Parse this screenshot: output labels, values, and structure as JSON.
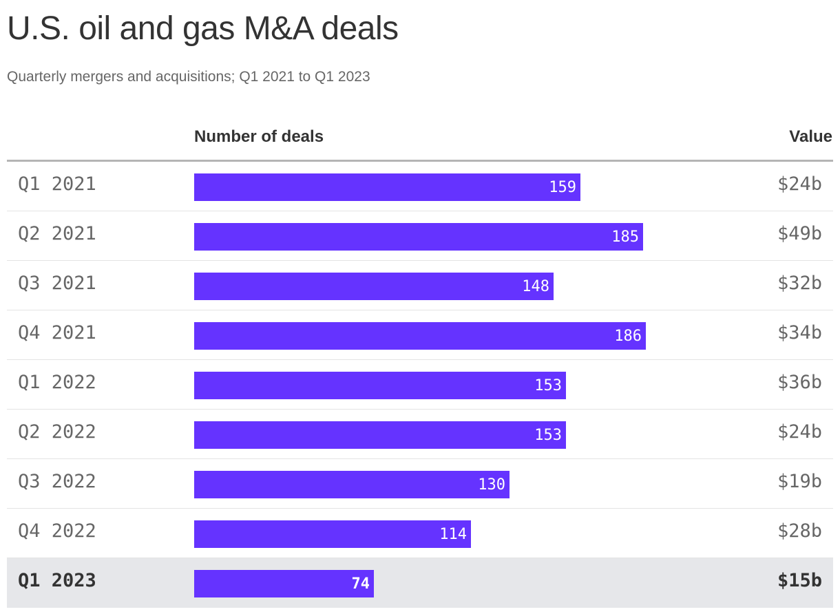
{
  "chart_data": {
    "type": "bar",
    "orientation": "horizontal",
    "title": "U.S. oil and gas M&A deals",
    "subtitle": "Quarterly mergers and acquisitions; Q1 2021 to Q1 2023",
    "columns": {
      "deals": "Number of deals",
      "value": "Value"
    },
    "categories": [
      "Q1 2021",
      "Q2 2021",
      "Q3 2021",
      "Q4 2021",
      "Q1 2022",
      "Q2 2022",
      "Q3 2022",
      "Q4 2022",
      "Q1 2023"
    ],
    "values": [
      159,
      185,
      148,
      186,
      153,
      153,
      130,
      114,
      74
    ],
    "value_labels": [
      "$24b",
      "$49b",
      "$32b",
      "$34b",
      "$36b",
      "$24b",
      "$19b",
      "$28b",
      "$15b"
    ],
    "highlight_category": "Q1 2023",
    "xlim": [
      0,
      186
    ],
    "grid": false
  },
  "colors": {
    "bar": "#6533ff",
    "highlight_row": "#e6e7ea",
    "text": "#333333",
    "muted_text": "#666666"
  }
}
